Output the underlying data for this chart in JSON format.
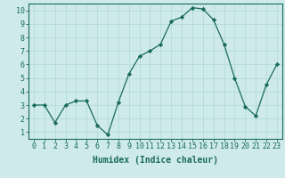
{
  "x": [
    0,
    1,
    2,
    3,
    4,
    5,
    6,
    7,
    8,
    9,
    10,
    11,
    12,
    13,
    14,
    15,
    16,
    17,
    18,
    19,
    20,
    21,
    22,
    23
  ],
  "y": [
    3.0,
    3.0,
    1.7,
    3.0,
    3.3,
    3.3,
    1.5,
    0.8,
    3.2,
    5.3,
    6.6,
    7.0,
    7.5,
    9.2,
    9.5,
    10.2,
    10.1,
    9.3,
    7.5,
    5.0,
    2.9,
    2.2,
    4.5,
    6.0
  ],
  "line_color": "#1a6b5a",
  "marker": "D",
  "marker_size": 2.2,
  "background_color": "#ceeaea",
  "grid_color": "#b0d8d8",
  "xlabel": "Humidex (Indice chaleur)",
  "xlabel_fontsize": 7,
  "tick_fontsize": 6,
  "ylim": [
    0.5,
    10.5
  ],
  "xlim": [
    -0.5,
    23.5
  ],
  "yticks": [
    1,
    2,
    3,
    4,
    5,
    6,
    7,
    8,
    9,
    10
  ],
  "xticks": [
    0,
    1,
    2,
    3,
    4,
    5,
    6,
    7,
    8,
    9,
    10,
    11,
    12,
    13,
    14,
    15,
    16,
    17,
    18,
    19,
    20,
    21,
    22,
    23
  ]
}
